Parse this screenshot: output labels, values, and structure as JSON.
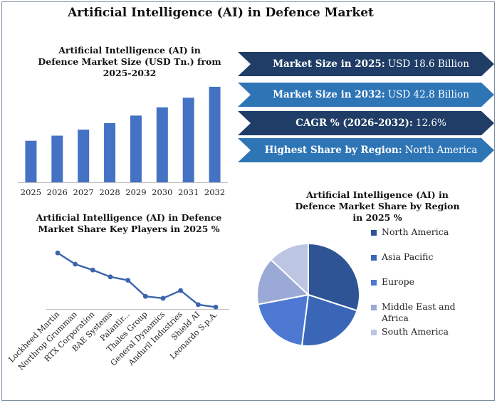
{
  "title": "Artificial Intelligence (AI) in Defence Market",
  "banners": [
    {
      "label": "Market Size in 2025:",
      "value": "USD 18.6 Billion",
      "color": "#1f3d66"
    },
    {
      "label": "Market Size in 2032:",
      "value": "USD 42.8  Billion",
      "color": "#2e75b6"
    },
    {
      "label": "CAGR % (2026-2032):",
      "value": "12.6%",
      "color": "#1f3d66"
    },
    {
      "label": "Highest Share by Region:",
      "value": "North America",
      "color": "#2e75b6"
    }
  ],
  "chart_data": [
    {
      "type": "bar",
      "title": "Artificial Intelligence (AI) in Defence Market Size (USD Tn.) from 2025-2032",
      "categories": [
        "2025",
        "2026",
        "2027",
        "2028",
        "2029",
        "2030",
        "2031",
        "2032"
      ],
      "values": [
        18.6,
        20.9,
        23.6,
        26.5,
        29.9,
        33.6,
        37.9,
        42.8
      ],
      "ylim": [
        0,
        45
      ],
      "color": "#4472c4",
      "grid": false
    },
    {
      "type": "line",
      "title": "Artificial Intelligence (AI) in Defence Market Share Key Players in 2025 %",
      "categories": [
        "Lockheed Martin",
        "Northrop Grumman",
        "RTX Corporation",
        "BAE Systems",
        "Palantir...",
        "Thales Group",
        "General Dynamics",
        "Anduril Industries",
        "Shield AI",
        "Leonardo S.p.A."
      ],
      "values": [
        11.5,
        9.2,
        8.0,
        6.6,
        5.9,
        2.6,
        2.2,
        3.8,
        0.9,
        0.4
      ],
      "ylim": [
        0,
        13
      ],
      "color": "#3b64ad",
      "grid": false
    },
    {
      "type": "pie",
      "title": "Artificial Intelligence (AI) in Defence Market Share by Region in 2025 %",
      "labels": [
        "North America",
        "Asia Pacific",
        "Europe",
        "Middle East and Africa",
        "South America"
      ],
      "values": [
        30,
        22,
        20,
        15,
        13
      ],
      "colors": [
        "#2f5496",
        "#3a66b8",
        "#4e79d2",
        "#9aa9d6",
        "#bcc5e2"
      ],
      "legend": "right"
    }
  ]
}
